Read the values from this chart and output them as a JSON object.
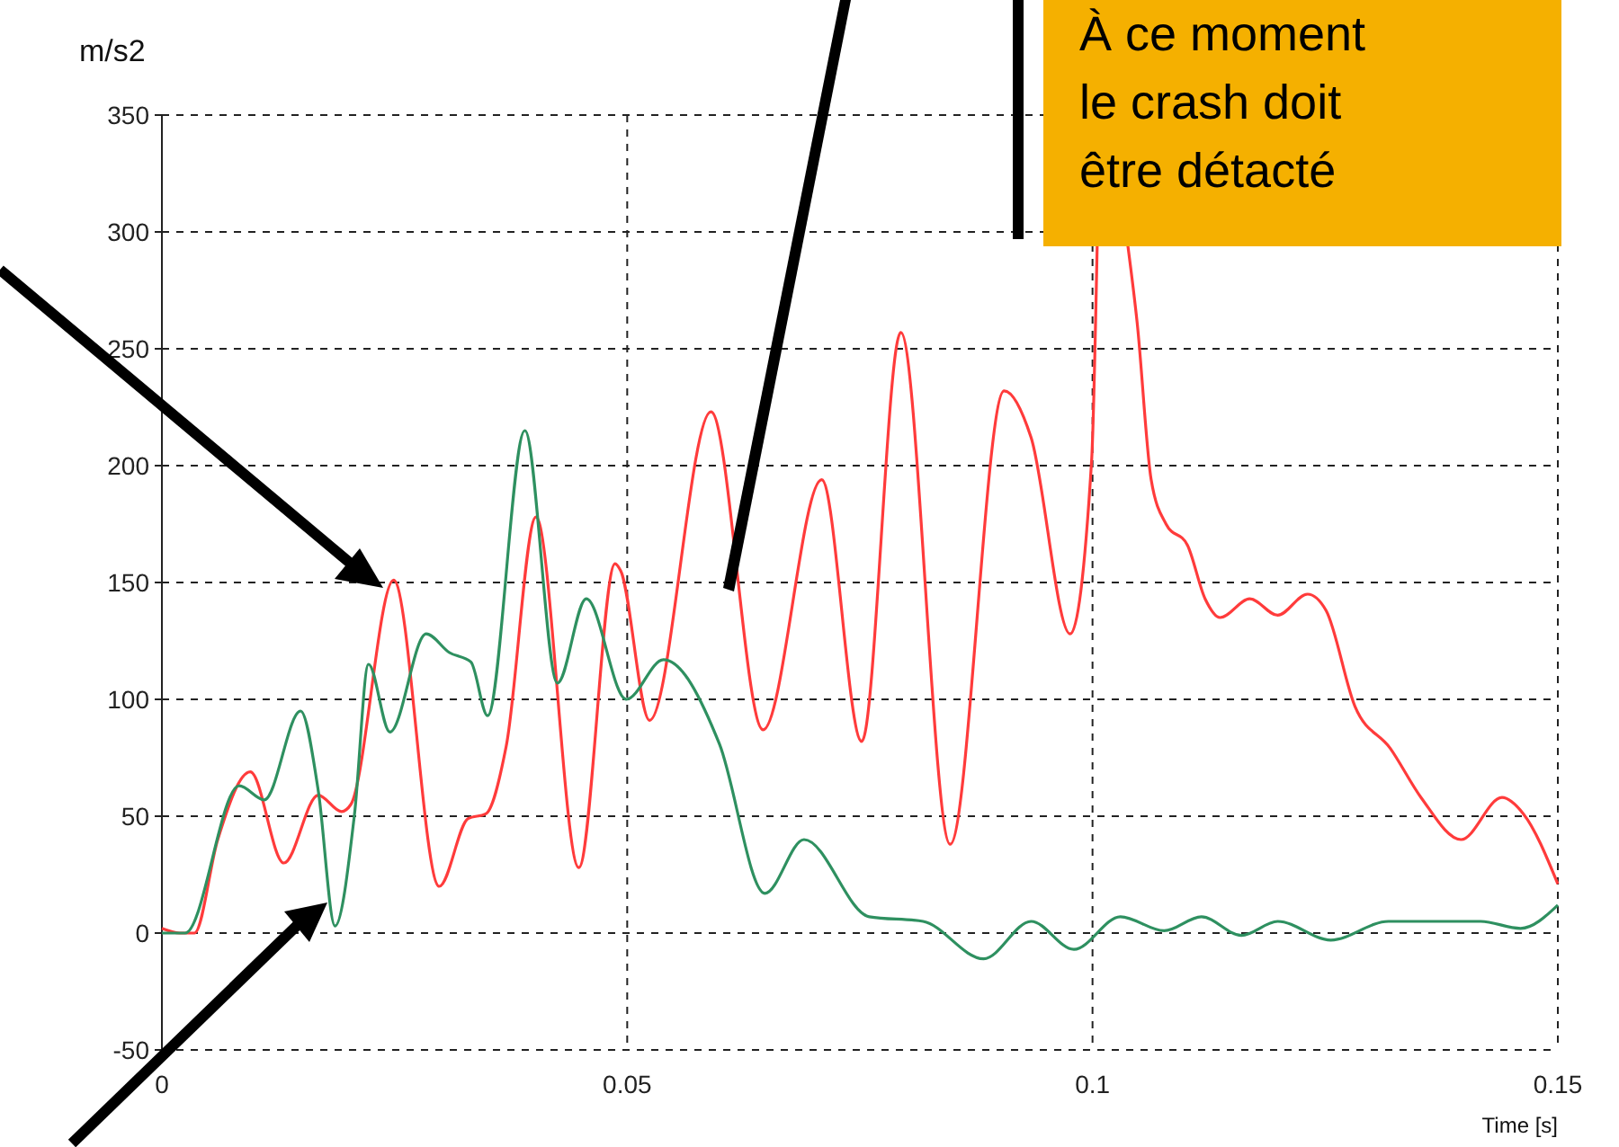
{
  "chart_data": {
    "type": "line",
    "ylabel": "m/s2",
    "xlabel": "Time [s]",
    "xlim": [
      0,
      0.15
    ],
    "ylim": [
      -50,
      350
    ],
    "xticks": [
      0,
      0.05,
      0.1,
      0.15
    ],
    "yticks": [
      -50,
      0,
      50,
      100,
      150,
      200,
      250,
      300,
      350
    ],
    "grid": true,
    "line_style": "solid",
    "marker": "none",
    "annotations": [
      "À ce moment le crash doit être détacté"
    ],
    "series": [
      {
        "color": "#ff3b3b",
        "x": [
          0,
          0.0019,
          0.0035,
          0.006,
          0.0095,
          0.0131,
          0.0168,
          0.0193,
          0.0203,
          0.0249,
          0.0298,
          0.0329,
          0.0348,
          0.037,
          0.0402,
          0.0448,
          0.0487,
          0.0493,
          0.0524,
          0.059,
          0.0646,
          0.0709,
          0.0752,
          0.0794,
          0.0847,
          0.0905,
          0.0934,
          0.0976,
          0.0999,
          0.1005,
          0.102,
          0.1038,
          0.1048,
          0.1063,
          0.1079,
          0.1102,
          0.1121,
          0.1137,
          0.1169,
          0.1199,
          0.1231,
          0.1251,
          0.1282,
          0.132,
          0.1353,
          0.1396,
          0.144,
          0.1463,
          0.15
        ],
        "values": [
          2,
          0,
          0,
          40,
          69,
          30,
          59,
          52,
          55,
          151,
          20,
          49,
          51,
          80,
          178,
          28,
          158,
          155,
          91,
          223,
          87,
          194,
          82,
          257,
          38,
          232,
          212,
          128,
          202,
          294,
          null,
          294,
          261,
          194,
          175,
          166,
          143,
          135,
          143,
          136,
          145,
          138,
          97,
          79,
          58,
          40,
          58,
          51,
          21
        ]
      },
      {
        "color": "#2e9060",
        "x": [
          0,
          0.0025,
          0.0083,
          0.011,
          0.0149,
          0.0168,
          0.0186,
          0.0207,
          0.0222,
          0.0245,
          0.0284,
          0.0309,
          0.0332,
          0.035,
          0.039,
          0.0425,
          0.0456,
          0.0499,
          0.0539,
          0.0599,
          0.0648,
          0.069,
          0.076,
          0.0818,
          0.0883,
          0.0934,
          0.098,
          0.103,
          0.1077,
          0.1117,
          0.116,
          0.1199,
          0.1256,
          0.1318,
          0.1417,
          0.146,
          0.15
        ],
        "values": [
          0,
          0,
          63,
          57,
          95,
          61,
          3,
          51,
          115,
          86,
          128,
          120,
          116,
          93,
          215,
          107,
          143,
          100,
          117,
          81,
          17,
          40,
          7,
          5,
          -11,
          5,
          -7,
          7,
          1,
          7,
          -1,
          5,
          -3,
          5,
          5,
          2,
          12
        ]
      }
    ]
  }
}
